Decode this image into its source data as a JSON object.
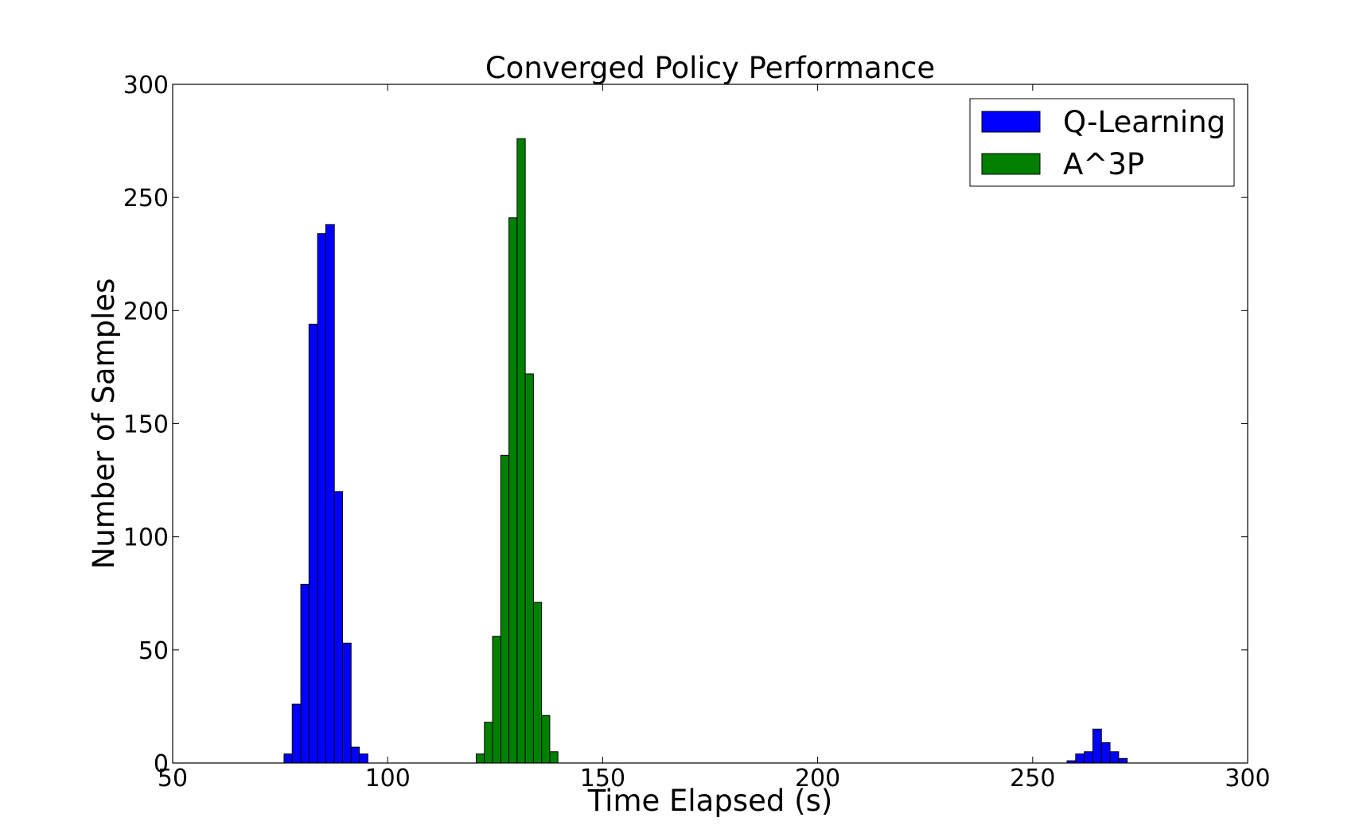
{
  "chart_data": {
    "type": "bar",
    "subtype": "histogram",
    "title": "Converged Policy Performance",
    "xlabel": "Time Elapsed (s)",
    "ylabel": "Number of Samples",
    "xlim": [
      50,
      300
    ],
    "ylim": [
      0,
      300
    ],
    "xticks": [
      "50",
      "100",
      "150",
      "200",
      "250",
      "300"
    ],
    "yticks": [
      "0",
      "50",
      "100",
      "150",
      "200",
      "250",
      "300"
    ],
    "grid": false,
    "legend_position": "top-right",
    "series": [
      {
        "name": "Q-Learning",
        "color": "#0000ff",
        "bins": [
          {
            "x": [
              75.9,
              77.8
            ],
            "value": 4
          },
          {
            "x": [
              77.8,
              79.8
            ],
            "value": 26
          },
          {
            "x": [
              79.8,
              81.7
            ],
            "value": 79
          },
          {
            "x": [
              81.7,
              83.7
            ],
            "value": 194
          },
          {
            "x": [
              83.7,
              85.6
            ],
            "value": 234
          },
          {
            "x": [
              85.6,
              87.6
            ],
            "value": 238
          },
          {
            "x": [
              87.6,
              89.5
            ],
            "value": 120
          },
          {
            "x": [
              89.5,
              91.5
            ],
            "value": 53
          },
          {
            "x": [
              91.5,
              93.4
            ],
            "value": 7
          },
          {
            "x": [
              93.4,
              95.4
            ],
            "value": 4
          },
          {
            "x": [
              258.0,
              260.0
            ],
            "value": 1
          },
          {
            "x": [
              260.0,
              262.0
            ],
            "value": 4
          },
          {
            "x": [
              262.0,
              264.0
            ],
            "value": 5
          },
          {
            "x": [
              264.0,
              266.0
            ],
            "value": 15
          },
          {
            "x": [
              266.0,
              268.0
            ],
            "value": 9
          },
          {
            "x": [
              268.0,
              270.0
            ],
            "value": 5
          },
          {
            "x": [
              270.0,
              272.0
            ],
            "value": 2
          }
        ]
      },
      {
        "name": "A^3P",
        "color": "#008000",
        "bins": [
          {
            "x": [
              120.6,
              122.5
            ],
            "value": 4
          },
          {
            "x": [
              122.5,
              124.4
            ],
            "value": 18
          },
          {
            "x": [
              124.4,
              126.3
            ],
            "value": 56
          },
          {
            "x": [
              126.3,
              128.2
            ],
            "value": 136
          },
          {
            "x": [
              128.2,
              130.1
            ],
            "value": 241
          },
          {
            "x": [
              130.1,
              132.0
            ],
            "value": 276
          },
          {
            "x": [
              132.0,
              133.9
            ],
            "value": 172
          },
          {
            "x": [
              133.9,
              135.8
            ],
            "value": 71
          },
          {
            "x": [
              135.8,
              137.7
            ],
            "value": 21
          },
          {
            "x": [
              137.7,
              139.6
            ],
            "value": 5
          }
        ]
      }
    ]
  }
}
